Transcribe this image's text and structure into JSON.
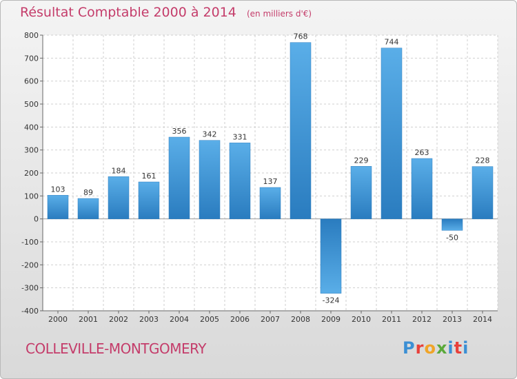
{
  "header": {
    "title": "Résultat Comptable 2000 à 2014",
    "subtitle": "(en milliers d'€)"
  },
  "footer": {
    "commune": "COLLEVILLE-MONTGOMERY",
    "logo": [
      "P",
      "r",
      "o",
      "x",
      "i",
      "t",
      "i"
    ],
    "logo_colors": [
      "#3b8fd4",
      "#e8403a",
      "#f0a428",
      "#5aa93a",
      "#3b8fd4",
      "#e8403a",
      "#3b8fd4"
    ]
  },
  "chart_data": {
    "type": "bar",
    "title": "Résultat Comptable 2000 à 2014",
    "subtitle": "(en milliers d'€)",
    "xlabel": "",
    "ylabel": "",
    "categories": [
      "2000",
      "2001",
      "2002",
      "2003",
      "2004",
      "2005",
      "2006",
      "2007",
      "2008",
      "2009",
      "2010",
      "2011",
      "2012",
      "2013",
      "2014"
    ],
    "values": [
      103,
      89,
      184,
      161,
      356,
      342,
      331,
      137,
      768,
      -324,
      229,
      744,
      263,
      -50,
      228
    ],
    "ylim": [
      -400,
      800
    ],
    "yticks": [
      -400,
      -300,
      -200,
      -100,
      0,
      100,
      200,
      300,
      400,
      500,
      600,
      700,
      800
    ],
    "grid": true,
    "bar_color": "#4a9fdc"
  }
}
